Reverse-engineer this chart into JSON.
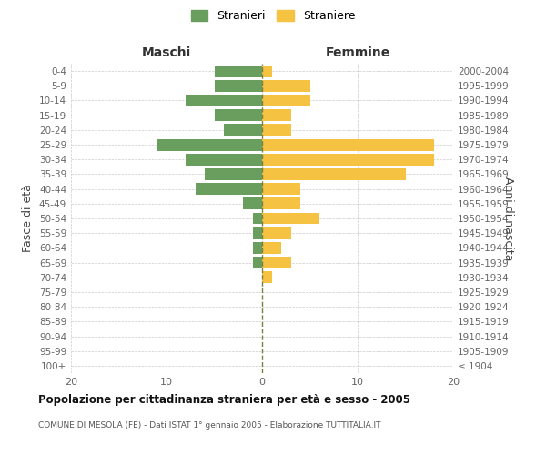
{
  "age_groups": [
    "100+",
    "95-99",
    "90-94",
    "85-89",
    "80-84",
    "75-79",
    "70-74",
    "65-69",
    "60-64",
    "55-59",
    "50-54",
    "45-49",
    "40-44",
    "35-39",
    "30-34",
    "25-29",
    "20-24",
    "15-19",
    "10-14",
    "5-9",
    "0-4"
  ],
  "birth_years": [
    "≤ 1904",
    "1905-1909",
    "1910-1914",
    "1915-1919",
    "1920-1924",
    "1925-1929",
    "1930-1934",
    "1935-1939",
    "1940-1944",
    "1945-1949",
    "1950-1954",
    "1955-1959",
    "1960-1964",
    "1965-1969",
    "1970-1974",
    "1975-1979",
    "1980-1984",
    "1985-1989",
    "1990-1994",
    "1995-1999",
    "2000-2004"
  ],
  "maschi": [
    0,
    0,
    0,
    0,
    0,
    0,
    0,
    1,
    1,
    1,
    1,
    2,
    7,
    6,
    8,
    11,
    4,
    5,
    8,
    5,
    5
  ],
  "femmine": [
    0,
    0,
    0,
    0,
    0,
    0,
    1,
    3,
    2,
    3,
    6,
    4,
    4,
    15,
    18,
    18,
    3,
    3,
    5,
    5,
    1
  ],
  "maschi_color": "#6a9e5e",
  "femmine_color": "#f5c242",
  "background_color": "#ffffff",
  "grid_color": "#cccccc",
  "title": "Popolazione per cittadinanza straniera per età e sesso - 2005",
  "subtitle": "COMUNE DI MESOLA (FE) - Dati ISTAT 1° gennaio 2005 - Elaborazione TUTTITALIA.IT",
  "xlabel_left": "Maschi",
  "xlabel_right": "Femmine",
  "ylabel_left": "Fasce di età",
  "ylabel_right": "Anni di nascita",
  "legend_stranieri": "Stranieri",
  "legend_straniere": "Straniere",
  "xlim": 20,
  "center_line_color": "#7a8040"
}
